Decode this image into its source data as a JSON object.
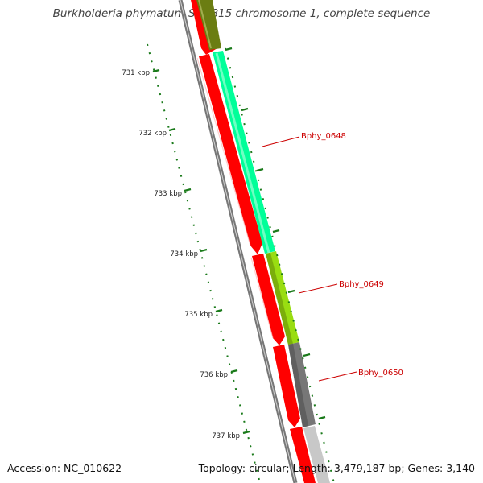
{
  "title": "Burkholderia phymatum STM815 chromosome 1, complete sequence",
  "footer": {
    "accession": "Accession: NC_010622",
    "stats": "Topology: circular; Length: 3,479,187 bp; Genes: 3,140"
  },
  "ticks": [
    "731 kbp",
    "732 kbp",
    "733 kbp",
    "734 kbp",
    "735 kbp",
    "736 kbp",
    "737 kbp"
  ],
  "gene_labels": [
    "Bphy_0648",
    "Bphy_0649",
    "Bphy_0650"
  ],
  "colors": {
    "forward_cds": "#ff0000",
    "bphy_0648": "#00ff99",
    "bphy_0649": "#99dd11",
    "bphy_0650": "#777777",
    "olive_gene": "#6b7d12",
    "label_red": "#cc0000",
    "tick_green": "#1a7a1a"
  }
}
